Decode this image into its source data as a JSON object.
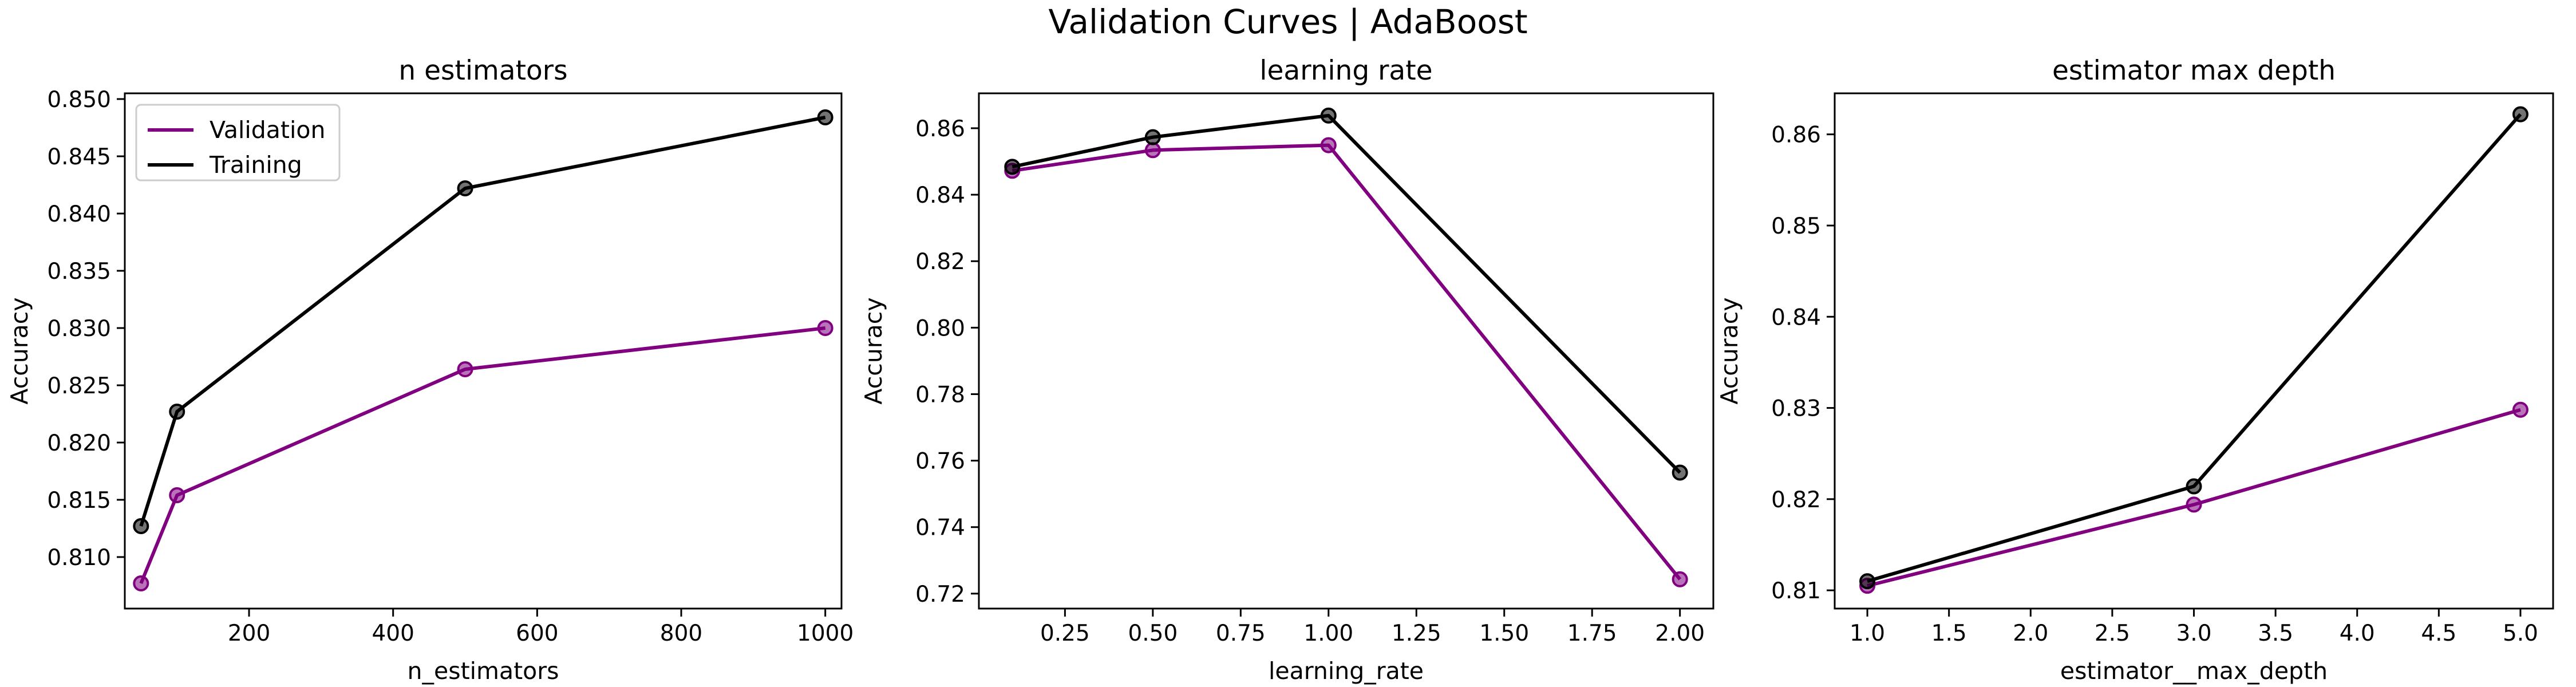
{
  "suptitle": "Validation Curves | AdaBoost",
  "colors": {
    "Validation": "#800080",
    "Training": "#000000"
  },
  "legend": {
    "placement": "upper-left",
    "entries": [
      "Validation",
      "Training"
    ]
  },
  "chart_data": [
    {
      "type": "line",
      "title": "n estimators",
      "xlabel": "n_estimators",
      "ylabel": "Accuracy",
      "xlim": [
        27.5,
        1022.5
      ],
      "ylim": [
        0.8055,
        0.8505
      ],
      "xticks": [
        200,
        400,
        600,
        800,
        1000
      ],
      "xticklabels": [
        "200",
        "400",
        "600",
        "800",
        "1000"
      ],
      "yticks": [
        0.81,
        0.815,
        0.82,
        0.825,
        0.83,
        0.835,
        0.84,
        0.845,
        0.85
      ],
      "yticklabels": [
        "0.810",
        "0.815",
        "0.820",
        "0.825",
        "0.830",
        "0.835",
        "0.840",
        "0.845",
        "0.850"
      ],
      "x": [
        50,
        100,
        500,
        1000
      ],
      "series": [
        {
          "name": "Validation",
          "values": [
            0.8077,
            0.8154,
            0.8264,
            0.83
          ]
        },
        {
          "name": "Training",
          "values": [
            0.8127,
            0.8227,
            0.8422,
            0.8484
          ]
        }
      ],
      "legend": true
    },
    {
      "type": "line",
      "title": "learning rate",
      "xlabel": "learning_rate",
      "ylabel": "Accuracy",
      "xlim": [
        0.005,
        2.095
      ],
      "ylim": [
        0.7155,
        0.8705
      ],
      "xticks": [
        0.25,
        0.5,
        0.75,
        1.0,
        1.25,
        1.5,
        1.75,
        2.0
      ],
      "xticklabels": [
        "0.25",
        "0.50",
        "0.75",
        "1.00",
        "1.25",
        "1.50",
        "1.75",
        "2.00"
      ],
      "yticks": [
        0.72,
        0.74,
        0.76,
        0.78,
        0.8,
        0.82,
        0.84,
        0.86
      ],
      "yticklabels": [
        "0.72",
        "0.74",
        "0.76",
        "0.78",
        "0.80",
        "0.82",
        "0.84",
        "0.86"
      ],
      "x": [
        0.1,
        0.5,
        1.0,
        2.0
      ],
      "series": [
        {
          "name": "Validation",
          "values": [
            0.8472,
            0.8534,
            0.8549,
            0.7243
          ]
        },
        {
          "name": "Training",
          "values": [
            0.8484,
            0.8573,
            0.8638,
            0.7564
          ]
        }
      ],
      "legend": false
    },
    {
      "type": "line",
      "title": "estimator  max depth",
      "xlabel": "estimator__max_depth",
      "ylabel": "Accuracy",
      "xlim": [
        0.8,
        5.2
      ],
      "ylim": [
        0.808,
        0.8645
      ],
      "xticks": [
        1.0,
        1.5,
        2.0,
        2.5,
        3.0,
        3.5,
        4.0,
        4.5,
        5.0
      ],
      "xticklabels": [
        "1.0",
        "1.5",
        "2.0",
        "2.5",
        "3.0",
        "3.5",
        "4.0",
        "4.5",
        "5.0"
      ],
      "yticks": [
        0.81,
        0.82,
        0.83,
        0.84,
        0.85,
        0.86
      ],
      "yticklabels": [
        "0.81",
        "0.82",
        "0.83",
        "0.84",
        "0.85",
        "0.86"
      ],
      "x": [
        1.0,
        3.0,
        5.0
      ],
      "series": [
        {
          "name": "Validation",
          "values": [
            0.8105,
            0.8194,
            0.8298
          ]
        },
        {
          "name": "Training",
          "values": [
            0.811,
            0.8214,
            0.8622
          ]
        }
      ],
      "legend": false
    }
  ]
}
